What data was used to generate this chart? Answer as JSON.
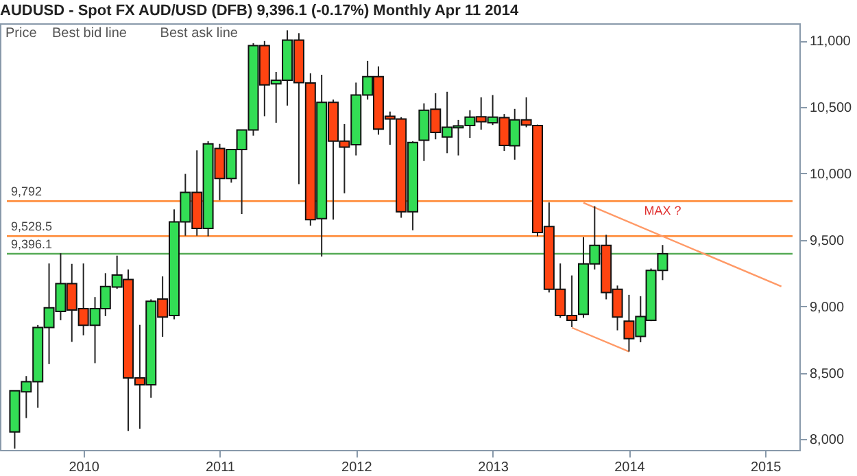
{
  "chart_data": {
    "type": "candlestick",
    "title": "AUDUSD - Spot FX AUD/USD (DFB)   9,396.1 (-0.17%)   Monthly  Apr 11 2014",
    "x": [
      "2009-07",
      "2009-08",
      "2009-09",
      "2009-10",
      "2009-11",
      "2009-12",
      "2010-01",
      "2010-02",
      "2010-03",
      "2010-04",
      "2010-05",
      "2010-06",
      "2010-07",
      "2010-08",
      "2010-09",
      "2010-10",
      "2010-11",
      "2010-12",
      "2011-01",
      "2011-02",
      "2011-03",
      "2011-04",
      "2011-05",
      "2011-06",
      "2011-07",
      "2011-08",
      "2011-09",
      "2011-10",
      "2011-11",
      "2011-12",
      "2012-01",
      "2012-02",
      "2012-03",
      "2012-04",
      "2012-05",
      "2012-06",
      "2012-07",
      "2012-08",
      "2012-09",
      "2012-10",
      "2012-11",
      "2012-12",
      "2013-01",
      "2013-02",
      "2013-03",
      "2013-04",
      "2013-05",
      "2013-06",
      "2013-07",
      "2013-08",
      "2013-09",
      "2013-10",
      "2013-11",
      "2013-12",
      "2014-01",
      "2014-02",
      "2014-03",
      "2014-04"
    ],
    "ohlc": [
      [
        8056,
        8365,
        7930,
        8365
      ],
      [
        8358,
        8476,
        8160,
        8434
      ],
      [
        8434,
        8860,
        8237,
        8841
      ],
      [
        8841,
        9323,
        8566,
        8990
      ],
      [
        8962,
        9400,
        8896,
        9171
      ],
      [
        9171,
        9320,
        8733,
        8973
      ],
      [
        8983,
        9323,
        8782,
        8858
      ],
      [
        8858,
        9070,
        8573,
        8983
      ],
      [
        8983,
        9250,
        8927,
        9150
      ],
      [
        9146,
        9382,
        9132,
        9236
      ],
      [
        9202,
        9278,
        8063,
        8462
      ],
      [
        8462,
        8861,
        8080,
        8410
      ],
      [
        8410,
        9053,
        8313,
        9039
      ],
      [
        9056,
        9226,
        8771,
        8920
      ],
      [
        8931,
        9730,
        8903,
        9636
      ],
      [
        9636,
        9997,
        9532,
        9858
      ],
      [
        9858,
        10174,
        9532,
        9587
      ],
      [
        9587,
        10243,
        9528,
        10223
      ],
      [
        10188,
        10223,
        9799,
        9962
      ],
      [
        9962,
        10181,
        9931,
        10181
      ],
      [
        10181,
        10327,
        9695,
        10327
      ],
      [
        10327,
        10980,
        10285,
        10962
      ],
      [
        10962,
        10997,
        10431,
        10667
      ],
      [
        10674,
        10764,
        10382,
        10702
      ],
      [
        10702,
        11077,
        10511,
        11004
      ],
      [
        11004,
        11056,
        9920,
        10684
      ],
      [
        10681,
        10754,
        9608,
        9653
      ],
      [
        9660,
        10743,
        9375,
        10535
      ],
      [
        10535,
        10556,
        9653,
        10243
      ],
      [
        10243,
        10372,
        9851,
        10198
      ],
      [
        10216,
        10684,
        10136,
        10591
      ],
      [
        10591,
        10847,
        10556,
        10729
      ],
      [
        10729,
        10806,
        10292,
        10334
      ],
      [
        10431,
        10466,
        10216,
        10410
      ],
      [
        10410,
        10424,
        9667,
        9712
      ],
      [
        9712,
        10243,
        9573,
        10233
      ],
      [
        10250,
        10528,
        10094,
        10476
      ],
      [
        10483,
        10604,
        10257,
        10309
      ],
      [
        10275,
        10615,
        10153,
        10348
      ],
      [
        10344,
        10403,
        10136,
        10358
      ],
      [
        10361,
        10476,
        10268,
        10424
      ],
      [
        10427,
        10573,
        10330,
        10389
      ],
      [
        10382,
        10590,
        10365,
        10424
      ],
      [
        10420,
        10448,
        10170,
        10212
      ],
      [
        10209,
        10486,
        10104,
        10403
      ],
      [
        10403,
        10573,
        10348,
        10365
      ],
      [
        10361,
        10368,
        9528,
        9556
      ],
      [
        9601,
        9782,
        9105,
        9129
      ],
      [
        9129,
        9323,
        8914,
        8931
      ],
      [
        8931,
        9233,
        8844,
        8896
      ],
      [
        8941,
        9521,
        8914,
        9320
      ],
      [
        9320,
        9754,
        9278,
        9459
      ],
      [
        9459,
        9539,
        9053,
        9105
      ],
      [
        9129,
        9157,
        8820,
        8920
      ],
      [
        8889,
        9087,
        8660,
        8757
      ],
      [
        8774,
        9077,
        8730,
        8924
      ],
      [
        8896,
        9285,
        8889,
        9271
      ],
      [
        9271,
        9462,
        9198,
        9396
      ]
    ],
    "colors": [
      "#33dd55",
      "#33dd55",
      "#33dd55",
      "#33dd55",
      "#33dd55",
      "#ff4411",
      "#ff4411",
      "#33dd55",
      "#33dd55",
      "#33dd55",
      "#ff4411",
      "#ff4411",
      "#33dd55",
      "#ff4411",
      "#33dd55",
      "#33dd55",
      "#ff4411",
      "#33dd55",
      "#ff4411",
      "#33dd55",
      "#33dd55",
      "#33dd55",
      "#ff4411",
      "#33dd55",
      "#33dd55",
      "#ff4411",
      "#ff4411",
      "#33dd55",
      "#ff4411",
      "#ff4411",
      "#33dd55",
      "#33dd55",
      "#ff4411",
      "#ff4411",
      "#ff4411",
      "#33dd55",
      "#33dd55",
      "#ff4411",
      "#33dd55",
      "#33dd55",
      "#33dd55",
      "#ff4411",
      "#33dd55",
      "#ff4411",
      "#33dd55",
      "#ff4411",
      "#ff4411",
      "#ff4411",
      "#ff4411",
      "#ff4411",
      "#33dd55",
      "#33dd55",
      "#ff4411",
      "#ff4411",
      "#ff4411",
      "#33dd55",
      "#33dd55",
      "#33dd55"
    ],
    "series": [
      {
        "type": "line",
        "x": [
          "2013-09",
          "2015-02-13"
        ],
        "values": [
          9780,
          9150
        ],
        "color": "#ff9966"
      },
      {
        "type": "line",
        "x": [
          "2013-08",
          "2014-01"
        ],
        "values": [
          8840,
          8660
        ],
        "color": "#ff9966"
      }
    ],
    "ref_lines": [
      {
        "axis": "y",
        "value": 9792,
        "label": "9,792",
        "color": "#ff8833"
      },
      {
        "axis": "y",
        "value": 9528.5,
        "label": "9,528.5",
        "color": "#ff8833"
      },
      {
        "axis": "y",
        "value": 9396.1,
        "label": "9,396.1",
        "color": "#55aa55"
      }
    ],
    "annotations": [
      "Price",
      "Best bid line",
      "Best ask line",
      {
        "text": "MAX ?",
        "x": "2014-04",
        "y": 9462
      }
    ],
    "xlim": [
      "2009-06-10",
      "2015-03-15"
    ],
    "xticks": [
      "2010",
      "2011",
      "2012",
      "2013",
      "2014",
      "2015"
    ],
    "ylim": [
      7920,
      11130
    ],
    "yticks": [
      {
        "value": 8000,
        "label": "8,000"
      },
      {
        "value": 8500,
        "label": "8,500"
      },
      {
        "value": 9000,
        "label": "9,000"
      },
      {
        "value": 9500,
        "label": "9,500"
      },
      {
        "value": 10000,
        "label": "10,000"
      },
      {
        "value": 10500,
        "label": "10,500"
      },
      {
        "value": 11000,
        "label": "11,000"
      }
    ]
  }
}
